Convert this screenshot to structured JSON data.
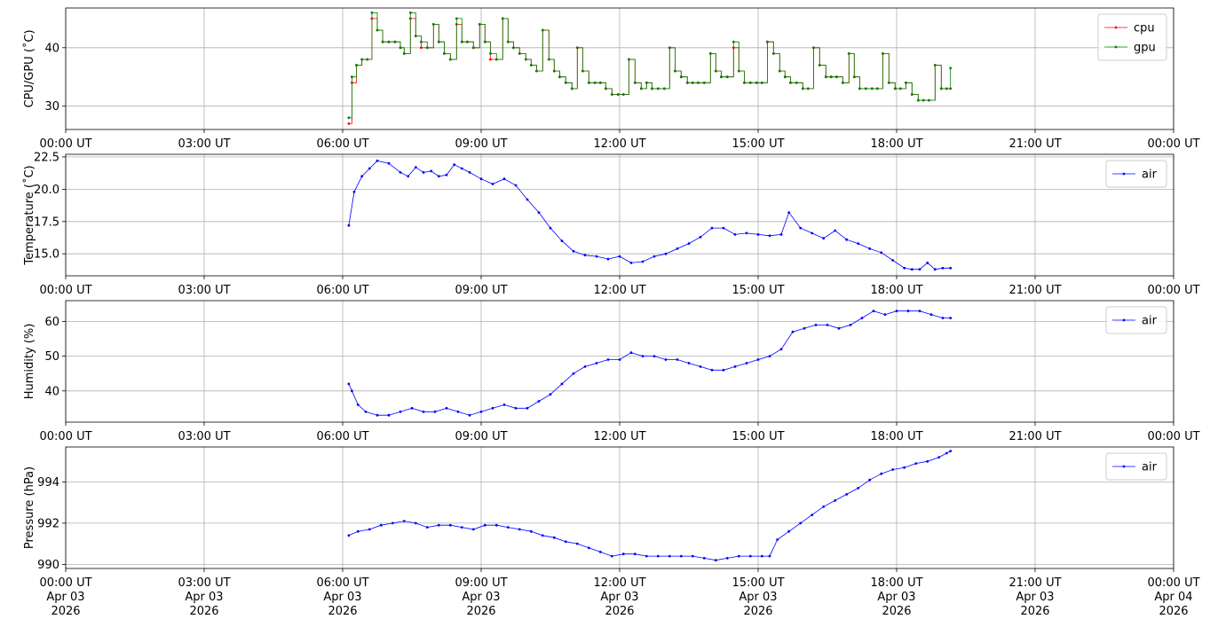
{
  "chart_data": [
    {
      "type": "line",
      "ylabel": "CPU/GPU (˚C)",
      "ylim": [
        26,
        46.8
      ],
      "yticks": [
        30,
        40
      ],
      "yticklabels": [
        "30",
        "40"
      ],
      "legend_loc": "upper-right",
      "series": [
        {
          "name": "cpu",
          "color": "#ff0000",
          "step": true,
          "x": [
            "06:08",
            "06:12",
            "06:18",
            "06:25",
            "06:32",
            "06:38",
            "06:45",
            "06:52",
            "07:00",
            "07:08",
            "07:15",
            "07:20",
            "07:28",
            "07:35",
            "07:42",
            "07:50",
            "07:58",
            "08:05",
            "08:12",
            "08:20",
            "08:28",
            "08:35",
            "08:42",
            "08:50",
            "08:58",
            "09:05",
            "09:12",
            "09:20",
            "09:28",
            "09:35",
            "09:42",
            "09:50",
            "09:58",
            "10:05",
            "10:12",
            "10:20",
            "10:28",
            "10:35",
            "10:42",
            "10:50",
            "10:58",
            "11:05",
            "11:12",
            "11:20",
            "11:28",
            "11:35",
            "11:42",
            "11:50",
            "11:58",
            "12:05",
            "12:12",
            "12:20",
            "12:28",
            "12:35",
            "12:42",
            "12:50",
            "12:58",
            "13:05",
            "13:12",
            "13:20",
            "13:28",
            "13:35",
            "13:42",
            "13:50",
            "13:58",
            "14:05",
            "14:12",
            "14:20",
            "14:28",
            "14:35",
            "14:42",
            "14:50",
            "14:58",
            "15:05",
            "15:12",
            "15:20",
            "15:28",
            "15:35",
            "15:42",
            "15:50",
            "15:58",
            "16:05",
            "16:12",
            "16:20",
            "16:28",
            "16:35",
            "16:42",
            "16:50",
            "16:58",
            "17:05",
            "17:12",
            "17:20",
            "17:28",
            "17:35",
            "17:42",
            "17:50",
            "17:58",
            "18:05",
            "18:12",
            "18:20",
            "18:28",
            "18:35",
            "18:42",
            "18:50",
            "18:58",
            "19:05",
            "19:10"
          ],
          "y": [
            27,
            34,
            37,
            38,
            38,
            45,
            43,
            41,
            41,
            41,
            40,
            39,
            45,
            42,
            40,
            40,
            44,
            41,
            39,
            38,
            44,
            41,
            41,
            40,
            44,
            41,
            38,
            38,
            45,
            41,
            40,
            39,
            38,
            37,
            36,
            43,
            38,
            36,
            35,
            34,
            33,
            40,
            36,
            34,
            34,
            34,
            33,
            32,
            32,
            32,
            38,
            34,
            33,
            34,
            33,
            33,
            33,
            40,
            36,
            35,
            34,
            34,
            34,
            34,
            39,
            36,
            35,
            35,
            40,
            36,
            34,
            34,
            34,
            34,
            41,
            39,
            36,
            35,
            34,
            34,
            33,
            33,
            40,
            37,
            35,
            35,
            35,
            34,
            39,
            35,
            33,
            33,
            33,
            33,
            39,
            34,
            33,
            33,
            34,
            32,
            31,
            31,
            31,
            37,
            33,
            33,
            33
          ]
        },
        {
          "name": "gpu",
          "color": "#008000",
          "step": true,
          "x": [
            "06:08",
            "06:12",
            "06:18",
            "06:25",
            "06:32",
            "06:38",
            "06:45",
            "06:52",
            "07:00",
            "07:08",
            "07:15",
            "07:20",
            "07:28",
            "07:35",
            "07:42",
            "07:50",
            "07:58",
            "08:05",
            "08:12",
            "08:20",
            "08:28",
            "08:35",
            "08:42",
            "08:50",
            "08:58",
            "09:05",
            "09:12",
            "09:20",
            "09:28",
            "09:35",
            "09:42",
            "09:50",
            "09:58",
            "10:05",
            "10:12",
            "10:20",
            "10:28",
            "10:35",
            "10:42",
            "10:50",
            "10:58",
            "11:05",
            "11:12",
            "11:20",
            "11:28",
            "11:35",
            "11:42",
            "11:50",
            "11:58",
            "12:05",
            "12:12",
            "12:20",
            "12:28",
            "12:35",
            "12:42",
            "12:50",
            "12:58",
            "13:05",
            "13:12",
            "13:20",
            "13:28",
            "13:35",
            "13:42",
            "13:50",
            "13:58",
            "14:05",
            "14:12",
            "14:20",
            "14:28",
            "14:35",
            "14:42",
            "14:50",
            "14:58",
            "15:05",
            "15:12",
            "15:20",
            "15:28",
            "15:35",
            "15:42",
            "15:50",
            "15:58",
            "16:05",
            "16:12",
            "16:20",
            "16:28",
            "16:35",
            "16:42",
            "16:50",
            "16:58",
            "17:05",
            "17:12",
            "17:20",
            "17:28",
            "17:35",
            "17:42",
            "17:50",
            "17:58",
            "18:05",
            "18:12",
            "18:20",
            "18:28",
            "18:35",
            "18:42",
            "18:50",
            "18:58",
            "19:05",
            "19:10"
          ],
          "y": [
            28,
            35,
            37,
            38,
            38,
            46,
            43,
            41,
            41,
            41,
            40,
            39,
            46,
            42,
            41,
            40,
            44,
            41,
            39,
            38,
            45,
            41,
            41,
            40,
            44,
            41,
            39,
            38,
            45,
            41,
            40,
            39,
            38,
            37,
            36,
            43,
            38,
            36,
            35,
            34,
            33,
            40,
            36,
            34,
            34,
            34,
            33,
            32,
            32,
            32,
            38,
            34,
            33,
            34,
            33,
            33,
            33,
            40,
            36,
            35,
            34,
            34,
            34,
            34,
            39,
            36,
            35,
            35,
            41,
            36,
            34,
            34,
            34,
            34,
            41,
            39,
            36,
            35,
            34,
            34,
            33,
            33,
            40,
            37,
            35,
            35,
            35,
            34,
            39,
            35,
            33,
            33,
            33,
            33,
            39,
            34,
            33,
            33,
            34,
            32,
            31,
            31,
            31,
            37,
            33,
            33,
            36.5
          ]
        }
      ]
    },
    {
      "type": "line",
      "ylabel": "Temperature (˚C)",
      "ylim": [
        13.3,
        22.7
      ],
      "yticks": [
        15,
        17.5,
        20,
        22.5
      ],
      "yticklabels": [
        "15.0",
        "17.5",
        "20.0",
        "22.5"
      ],
      "legend_loc": "upper-right",
      "series": [
        {
          "name": "air",
          "color": "#0000ff",
          "x": [
            "06:08",
            "06:15",
            "06:25",
            "06:35",
            "06:45",
            "07:00",
            "07:15",
            "07:25",
            "07:35",
            "07:45",
            "07:55",
            "08:05",
            "08:15",
            "08:25",
            "08:35",
            "08:45",
            "09:00",
            "09:15",
            "09:30",
            "09:45",
            "10:00",
            "10:15",
            "10:30",
            "10:45",
            "11:00",
            "11:15",
            "11:30",
            "11:45",
            "12:00",
            "12:15",
            "12:30",
            "12:45",
            "13:00",
            "13:15",
            "13:30",
            "13:45",
            "14:00",
            "14:15",
            "14:30",
            "14:45",
            "15:00",
            "15:15",
            "15:30",
            "15:40",
            "15:55",
            "16:10",
            "16:25",
            "16:40",
            "16:55",
            "17:10",
            "17:25",
            "17:40",
            "17:55",
            "18:10",
            "18:20",
            "18:30",
            "18:40",
            "18:50",
            "19:00",
            "19:10"
          ],
          "y": [
            17.2,
            19.8,
            21.0,
            21.6,
            22.2,
            22.0,
            21.3,
            21.0,
            21.7,
            21.3,
            21.4,
            21.0,
            21.1,
            21.9,
            21.6,
            21.3,
            20.8,
            20.4,
            20.8,
            20.3,
            19.2,
            18.2,
            17.0,
            16.0,
            15.2,
            14.9,
            14.8,
            14.6,
            14.8,
            14.3,
            14.4,
            14.8,
            15.0,
            15.4,
            15.8,
            16.3,
            17.0,
            17.0,
            16.5,
            16.6,
            16.5,
            16.4,
            16.5,
            18.2,
            17.0,
            16.6,
            16.2,
            16.8,
            16.1,
            15.8,
            15.4,
            15.1,
            14.5,
            13.9,
            13.8,
            13.8,
            14.3,
            13.8,
            13.9,
            13.9
          ]
        }
      ]
    },
    {
      "type": "line",
      "ylabel": "Humidity (%)",
      "ylim": [
        31,
        66
      ],
      "yticks": [
        40,
        50,
        60
      ],
      "yticklabels": [
        "40",
        "50",
        "60"
      ],
      "legend_loc": "upper-right",
      "series": [
        {
          "name": "air",
          "color": "#0000ff",
          "x": [
            "06:08",
            "06:12",
            "06:20",
            "06:30",
            "06:45",
            "07:00",
            "07:15",
            "07:30",
            "07:45",
            "08:00",
            "08:15",
            "08:30",
            "08:45",
            "09:00",
            "09:15",
            "09:30",
            "09:45",
            "10:00",
            "10:15",
            "10:30",
            "10:45",
            "11:00",
            "11:15",
            "11:30",
            "11:45",
            "12:00",
            "12:15",
            "12:30",
            "12:45",
            "13:00",
            "13:15",
            "13:30",
            "13:45",
            "14:00",
            "14:15",
            "14:30",
            "14:45",
            "15:00",
            "15:15",
            "15:30",
            "15:45",
            "16:00",
            "16:15",
            "16:30",
            "16:45",
            "17:00",
            "17:15",
            "17:30",
            "17:45",
            "18:00",
            "18:15",
            "18:30",
            "18:45",
            "19:00",
            "19:10"
          ],
          "y": [
            42,
            40,
            36,
            34,
            33,
            33,
            34,
            35,
            34,
            34,
            35,
            34,
            33,
            34,
            35,
            36,
            35,
            35,
            37,
            39,
            42,
            45,
            47,
            48,
            49,
            49,
            51,
            50,
            50,
            49,
            49,
            48,
            47,
            46,
            46,
            47,
            48,
            49,
            50,
            52,
            57,
            58,
            59,
            59,
            58,
            59,
            61,
            63,
            62,
            63,
            63,
            63,
            62,
            61,
            61
          ]
        }
      ]
    },
    {
      "type": "line",
      "ylabel": "Pressure (hPa)",
      "ylim": [
        989.8,
        995.7
      ],
      "yticks": [
        990,
        992,
        994
      ],
      "yticklabels": [
        "990",
        "992",
        "994"
      ],
      "legend_loc": "upper-right",
      "series": [
        {
          "name": "air",
          "color": "#0000ff",
          "x": [
            "06:08",
            "06:20",
            "06:35",
            "06:50",
            "07:05",
            "07:20",
            "07:35",
            "07:50",
            "08:05",
            "08:20",
            "08:35",
            "08:50",
            "09:05",
            "09:20",
            "09:35",
            "09:50",
            "10:05",
            "10:20",
            "10:35",
            "10:50",
            "11:05",
            "11:20",
            "11:35",
            "11:50",
            "12:05",
            "12:20",
            "12:35",
            "12:50",
            "13:05",
            "13:20",
            "13:35",
            "13:50",
            "14:05",
            "14:20",
            "14:35",
            "14:50",
            "15:05",
            "15:15",
            "15:25",
            "15:40",
            "15:55",
            "16:10",
            "16:25",
            "16:40",
            "16:55",
            "17:10",
            "17:25",
            "17:40",
            "17:55",
            "18:10",
            "18:25",
            "18:40",
            "18:55",
            "19:05",
            "19:10"
          ],
          "y": [
            991.4,
            991.6,
            991.7,
            991.9,
            992.0,
            992.1,
            992.0,
            991.8,
            991.9,
            991.9,
            991.8,
            991.7,
            991.9,
            991.9,
            991.8,
            991.7,
            991.6,
            991.4,
            991.3,
            991.1,
            991.0,
            990.8,
            990.6,
            990.4,
            990.5,
            990.5,
            990.4,
            990.4,
            990.4,
            990.4,
            990.4,
            990.3,
            990.2,
            990.3,
            990.4,
            990.4,
            990.4,
            990.4,
            991.2,
            991.6,
            992.0,
            992.4,
            992.8,
            993.1,
            993.4,
            993.7,
            994.1,
            994.4,
            994.6,
            994.7,
            994.9,
            995.0,
            995.2,
            995.4,
            995.5
          ]
        }
      ]
    }
  ],
  "x_axis": {
    "ticklabels_upper": [
      "00:00 UT",
      "03:00 UT",
      "06:00 UT",
      "09:00 UT",
      "12:00 UT",
      "15:00 UT",
      "18:00 UT",
      "21:00 UT",
      "00:00 UT"
    ],
    "ticklabels_bottom": [
      "00:00 UT\nApr 03\n2026",
      "03:00 UT\nApr 03\n2026",
      "06:00 UT\nApr 03\n2026",
      "09:00 UT\nApr 03\n2026",
      "12:00 UT\nApr 03\n2026",
      "15:00 UT\nApr 03\n2026",
      "18:00 UT\nApr 03\n2026",
      "21:00 UT\nApr 03\n2026",
      "00:00 UT\nApr 04\n2026"
    ],
    "range": [
      "2026-04-03 00:00",
      "2026-04-04 00:00"
    ],
    "grid": true
  }
}
